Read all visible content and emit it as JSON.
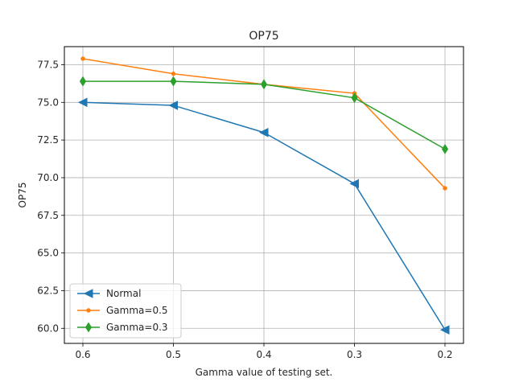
{
  "chart_data": {
    "type": "line",
    "title": "OP75",
    "xlabel": "Gamma value of testing set.",
    "ylabel": "OP75",
    "categories": [
      "0.6",
      "0.5",
      "0.4",
      "0.3",
      "0.2"
    ],
    "ylim": [
      59.0,
      78.7
    ],
    "yticks": [
      60.0,
      62.5,
      65.0,
      67.5,
      70.0,
      72.5,
      75.0,
      77.5
    ],
    "ytick_labels": [
      "60.0",
      "62.5",
      "65.0",
      "67.5",
      "70.0",
      "72.5",
      "75.0",
      "77.5"
    ],
    "grid": true,
    "legend_position": "lower-left",
    "series": [
      {
        "name": "Normal",
        "values": [
          75.0,
          74.8,
          73.0,
          69.6,
          59.9
        ],
        "color": "#1f77b4",
        "marker": "triangle-left"
      },
      {
        "name": "Gamma=0.5",
        "values": [
          77.9,
          76.9,
          76.2,
          75.6,
          69.3
        ],
        "color": "#ff7f0e",
        "marker": "point"
      },
      {
        "name": "Gamma=0.3",
        "values": [
          76.4,
          76.4,
          76.2,
          75.3,
          71.9
        ],
        "color": "#2ca02c",
        "marker": "thin-diamond"
      }
    ]
  }
}
